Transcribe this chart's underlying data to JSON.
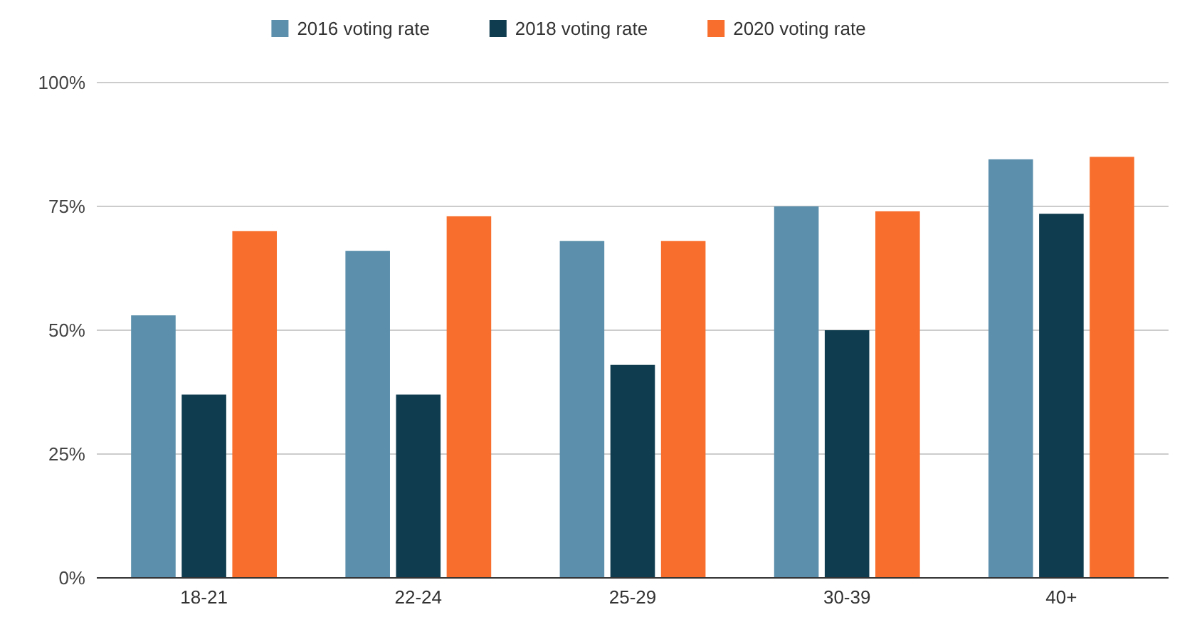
{
  "chart_data": {
    "type": "bar",
    "categories": [
      "18-21",
      "22-24",
      "25-29",
      "30-39",
      "40+"
    ],
    "series": [
      {
        "name": "2016 voting rate",
        "color": "#5b8fac",
        "values": [
          53,
          66,
          68,
          75,
          84.5
        ]
      },
      {
        "name": "2018 voting rate",
        "color": "#0f3d4f",
        "values": [
          37,
          37,
          43,
          50,
          73.5
        ]
      },
      {
        "name": "2020 voting rate",
        "color": "#f86f2d",
        "values": [
          70,
          73,
          68,
          74,
          85
        ]
      }
    ],
    "ylim": [
      0,
      100
    ],
    "yticks": [
      {
        "value": 0,
        "label": "0%"
      },
      {
        "value": 25,
        "label": "25%"
      },
      {
        "value": 50,
        "label": "50%"
      },
      {
        "value": 75,
        "label": "75%"
      },
      {
        "value": 100,
        "label": "100%"
      }
    ],
    "grid": "y",
    "legend": "top"
  }
}
